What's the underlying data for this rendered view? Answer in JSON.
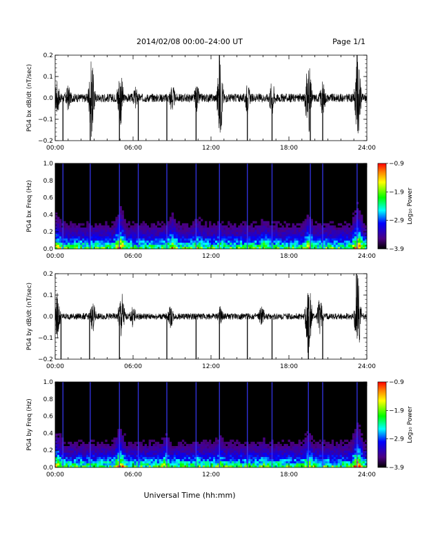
{
  "header": {
    "title": "2014/02/08  00:00–24:00 UT",
    "page": "Page 1/1"
  },
  "footer": {
    "xlabel": "Universal Time (hh:mm)"
  },
  "colors": {
    "trace": "#000000",
    "spectrogram_bg": "#000000"
  },
  "chart_data": [
    {
      "type": "line",
      "title": "",
      "ylabel": "PG4 bx dB/dt (nT/sec)",
      "xlabel": "",
      "xlim": [
        0,
        24
      ],
      "ylim": [
        -0.2,
        0.2
      ],
      "x_ticks": [
        "00:00",
        "06:00",
        "12:00",
        "18:00",
        "24:00"
      ],
      "y_ticks": [
        "0.2",
        "0.1",
        "0.0",
        "−0.1",
        "−0.2"
      ],
      "base_noise": 0.02,
      "bursts": [
        [
          0.15,
          0.09
        ],
        [
          1.0,
          0.07
        ],
        [
          2.8,
          0.2
        ],
        [
          5.0,
          0.16
        ],
        [
          6.2,
          0.06
        ],
        [
          9.0,
          0.08
        ],
        [
          10.9,
          0.07
        ],
        [
          12.7,
          0.2
        ],
        [
          14.8,
          0.08
        ],
        [
          16.7,
          0.1
        ],
        [
          19.5,
          0.2
        ],
        [
          20.6,
          0.09
        ],
        [
          23.3,
          0.21
        ]
      ],
      "spikes": [
        [
          0.6,
          -0.21
        ],
        [
          2.7,
          -0.21
        ],
        [
          4.95,
          -0.21
        ],
        [
          6.4,
          -0.21
        ],
        [
          8.6,
          -0.21
        ],
        [
          10.85,
          -0.21
        ],
        [
          12.65,
          0.21
        ],
        [
          14.8,
          -0.21
        ],
        [
          16.7,
          -0.21
        ],
        [
          19.65,
          -0.21
        ],
        [
          20.6,
          -0.21
        ],
        [
          23.25,
          0.21
        ]
      ]
    },
    {
      "type": "heatmap",
      "title": "",
      "ylabel": "PG4 bx Freq (Hz)",
      "xlabel": "",
      "xlim": [
        0,
        24
      ],
      "ylim": [
        0,
        1.0
      ],
      "x_ticks": [
        "00:00",
        "06:00",
        "12:00",
        "18:00",
        "24:00"
      ],
      "y_ticks": [
        "1.0",
        "0.8",
        "0.6",
        "0.4",
        "0.2",
        "0.0"
      ],
      "colorbar_label": "Log₁₀ Power",
      "colorbar_ticks": [
        "−0.9",
        "−1.9",
        "−2.9",
        "−3.9"
      ],
      "clim": [
        -3.9,
        -0.9
      ],
      "vlines": [
        0.6,
        2.7,
        4.95,
        6.4,
        8.6,
        10.85,
        12.65,
        14.8,
        16.7,
        19.65,
        20.6,
        23.25
      ],
      "bursts": [
        [
          0.15,
          0.6
        ],
        [
          2.8,
          0.2
        ],
        [
          5.0,
          0.9
        ],
        [
          9.0,
          0.6
        ],
        [
          11.0,
          0.4
        ],
        [
          12.7,
          0.3
        ],
        [
          16.1,
          0.4
        ],
        [
          19.5,
          0.6
        ],
        [
          23.3,
          1.0
        ]
      ]
    },
    {
      "type": "line",
      "title": "",
      "ylabel": "PG4 by dB/dt (nT/sec)",
      "xlabel": "",
      "xlim": [
        0,
        24
      ],
      "ylim": [
        -0.2,
        0.2
      ],
      "x_ticks": [
        "00:00",
        "06:00",
        "12:00",
        "18:00",
        "24:00"
      ],
      "y_ticks": [
        "0.2",
        "0.1",
        "0.0",
        "−0.1",
        "−0.2"
      ],
      "base_noise": 0.015,
      "bursts": [
        [
          0.15,
          0.12
        ],
        [
          2.9,
          0.08
        ],
        [
          5.1,
          0.14
        ],
        [
          6.0,
          0.06
        ],
        [
          8.9,
          0.06
        ],
        [
          12.7,
          0.05
        ],
        [
          15.9,
          0.06
        ],
        [
          19.5,
          0.21
        ],
        [
          20.4,
          0.1
        ],
        [
          23.3,
          0.21
        ]
      ],
      "spikes": [
        [
          0.45,
          -0.21
        ],
        [
          2.65,
          -0.21
        ],
        [
          4.95,
          -0.21
        ],
        [
          8.6,
          -0.21
        ],
        [
          10.85,
          -0.21
        ],
        [
          12.65,
          -0.21
        ],
        [
          14.8,
          -0.21
        ],
        [
          16.7,
          -0.21
        ],
        [
          19.5,
          -0.21
        ],
        [
          20.6,
          -0.21
        ],
        [
          23.2,
          0.21
        ]
      ]
    },
    {
      "type": "heatmap",
      "title": "",
      "ylabel": "PG4 by Freq (Hz)",
      "xlabel": "",
      "xlim": [
        0,
        24
      ],
      "ylim": [
        0,
        1.0
      ],
      "x_ticks": [
        "00:00",
        "06:00",
        "12:00",
        "18:00",
        "24:00"
      ],
      "y_ticks": [
        "1.0",
        "0.8",
        "0.6",
        "0.4",
        "0.2",
        "0.0"
      ],
      "colorbar_label": "Log₁₀ Power",
      "colorbar_ticks": [
        "−0.9",
        "−1.9",
        "−2.9",
        "−3.9"
      ],
      "clim": [
        -3.9,
        -0.9
      ],
      "vlines": [
        0.6,
        2.7,
        4.95,
        6.4,
        8.6,
        10.85,
        12.65,
        14.8,
        16.7,
        19.5,
        20.6,
        23.25
      ],
      "bursts": [
        [
          0.15,
          0.7
        ],
        [
          2.8,
          0.2
        ],
        [
          5.0,
          0.9
        ],
        [
          8.5,
          0.5
        ],
        [
          11.0,
          0.3
        ],
        [
          12.7,
          0.4
        ],
        [
          16.0,
          0.3
        ],
        [
          19.5,
          0.6
        ],
        [
          23.3,
          1.0
        ]
      ]
    }
  ]
}
